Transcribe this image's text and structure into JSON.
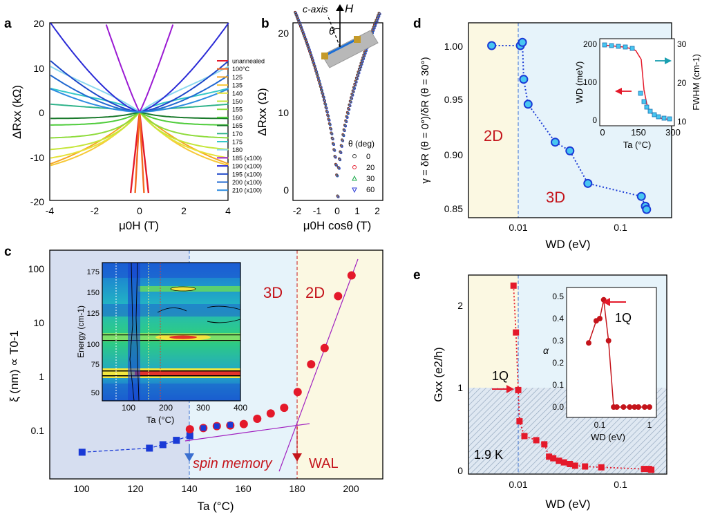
{
  "panels": {
    "a": {
      "letter": "a",
      "xlabel": "μ0H (T)",
      "ylabel": "ΔRxx (kΩ)",
      "xticks": [
        "-4",
        "-2",
        "0",
        "2",
        "4"
      ],
      "yticks": [
        "20",
        "10",
        "0",
        "-10",
        "-20"
      ],
      "legend": [
        {
          "label": "unannealed",
          "color": "#e4192a"
        },
        {
          "label": "100°C",
          "color": "#f46a1f"
        },
        {
          "label": "125",
          "color": "#f5a623"
        },
        {
          "label": "135",
          "color": "#f7c836"
        },
        {
          "label": "140",
          "color": "#e6e33a"
        },
        {
          "label": "150",
          "color": "#c5e63a"
        },
        {
          "label": "155",
          "color": "#8fdc3c"
        },
        {
          "label": "160",
          "color": "#4fcc3b"
        },
        {
          "label": "165",
          "color": "#1a7a2c"
        },
        {
          "label": "170",
          "color": "#2fb38a"
        },
        {
          "label": "175",
          "color": "#33c8c8"
        },
        {
          "label": "180",
          "color": "#8ad8ee"
        },
        {
          "label": "185 (x100)",
          "color": "#9b1ad3"
        },
        {
          "label": "190 (x100)",
          "color": "#2a2ad6"
        },
        {
          "label": "195 (x100)",
          "color": "#1d47c9"
        },
        {
          "label": "200 (x100)",
          "color": "#2168d0"
        },
        {
          "label": "210 (x100)",
          "color": "#2d8be0"
        }
      ]
    },
    "b": {
      "letter": "b",
      "xlabel": "μ0H cosθ (T)",
      "ylabel": "ΔRxx (Ω)",
      "xticks": [
        "-2",
        "-1",
        "0",
        "1",
        "2"
      ],
      "yticks": [
        "20",
        "10",
        "0"
      ],
      "caxis": "c-axis",
      "H": "H",
      "theta": "θ",
      "legend_title": "θ (deg)",
      "legend": [
        {
          "label": "0",
          "color": "#333333"
        },
        {
          "label": "20",
          "color": "#e4192a"
        },
        {
          "label": "30",
          "color": "#1aa84a"
        },
        {
          "label": "60",
          "color": "#2a3ad6"
        }
      ]
    },
    "c": {
      "letter": "c",
      "xlabel": "Ta (°C)",
      "ylabel": "ξ (nm) ∝ T0-1",
      "xticks": [
        "100",
        "120",
        "140",
        "160",
        "180",
        "200"
      ],
      "yticks": [
        "100",
        "10",
        "1",
        "0.1"
      ],
      "label_3d": "3D",
      "label_2d": "2D",
      "spin_memory": "spin memory",
      "wal": "WAL",
      "inset": {
        "ylabel": "Energy (cm-1)",
        "xlabel": "Ta (°C)",
        "yticks": [
          "175",
          "150",
          "125",
          "100",
          "75",
          "50"
        ],
        "xticks": [
          "100",
          "200",
          "300",
          "400"
        ]
      },
      "blue_series": [
        [
          100,
          0.042
        ],
        [
          125,
          0.05
        ],
        [
          130,
          0.058
        ],
        [
          135,
          0.07
        ],
        [
          140,
          0.085
        ]
      ],
      "red_series": [
        [
          140,
          0.112
        ],
        [
          145,
          0.118
        ],
        [
          150,
          0.128
        ],
        [
          155,
          0.132
        ],
        [
          160,
          0.14
        ],
        [
          165,
          0.175
        ],
        [
          170,
          0.22
        ],
        [
          175,
          0.28
        ],
        [
          180,
          0.55
        ],
        [
          185,
          1.8
        ],
        [
          190,
          3.6
        ],
        [
          195,
          33
        ],
        [
          200,
          80
        ]
      ]
    },
    "d": {
      "letter": "d",
      "xlabel": "WD (eV)",
      "ylabel": "γ = δR (θ = 0°)/δR (θ = 30°)",
      "xticks": [
        "0.01",
        "0.1"
      ],
      "yticks": [
        "1.00",
        "0.95",
        "0.90",
        "0.85"
      ],
      "label_2d": "2D",
      "label_3d": "3D",
      "series": [
        [
          0.0055,
          1.0
        ],
        [
          0.0105,
          1.0
        ],
        [
          0.011,
          1.003
        ],
        [
          0.0113,
          0.969
        ],
        [
          0.0125,
          0.946
        ],
        [
          0.023,
          0.911
        ],
        [
          0.032,
          0.903
        ],
        [
          0.048,
          0.873
        ],
        [
          0.16,
          0.861
        ],
        [
          0.175,
          0.852
        ],
        [
          0.18,
          0.849
        ]
      ],
      "inset": {
        "ylabel_left": "WD (meV)",
        "ylabel_right": "FWHM (cm-1)",
        "xlabel": "Ta (°C)",
        "xticks": [
          "0",
          "150",
          "300"
        ],
        "yticks_left": [
          "200",
          "100",
          "0"
        ],
        "yticks_right": [
          "30",
          "20",
          "10"
        ]
      }
    },
    "e": {
      "letter": "e",
      "xlabel": "WD (eV)",
      "ylabel": "Gxx (e2/h)",
      "xticks": [
        "0.01",
        "0.1"
      ],
      "yticks": [
        "2",
        "1",
        "0"
      ],
      "label_1q": "1Q",
      "label_temp": "1.9 K",
      "series": [
        [
          0.009,
          2.25
        ],
        [
          0.0095,
          1.68
        ],
        [
          0.01,
          0.98
        ],
        [
          0.0103,
          0.6
        ],
        [
          0.0115,
          0.42
        ],
        [
          0.015,
          0.37
        ],
        [
          0.018,
          0.32
        ],
        [
          0.02,
          0.17
        ],
        [
          0.022,
          0.15
        ],
        [
          0.025,
          0.12
        ],
        [
          0.028,
          0.1
        ],
        [
          0.032,
          0.08
        ],
        [
          0.036,
          0.06
        ],
        [
          0.045,
          0.05
        ],
        [
          0.065,
          0.04
        ],
        [
          0.17,
          0.02
        ],
        [
          0.19,
          0.02
        ],
        [
          0.2,
          0.01
        ]
      ],
      "inset": {
        "ylabel": "α",
        "xlabel": "WD (eV)",
        "label_1q": "1Q",
        "yticks": [
          "0.5",
          "0.4",
          "0.3",
          "0.2",
          "0.1",
          "0.0"
        ],
        "xticks": [
          "0.1",
          "1"
        ],
        "series": [
          [
            0.06,
            0.29
          ],
          [
            0.085,
            0.39
          ],
          [
            0.1,
            0.4
          ],
          [
            0.12,
            0.485
          ],
          [
            0.15,
            0.3
          ],
          [
            0.19,
            0.0
          ],
          [
            0.22,
            0.0
          ],
          [
            0.3,
            0.0
          ],
          [
            0.4,
            0.0
          ],
          [
            0.5,
            0.0
          ],
          [
            0.6,
            0.0
          ],
          [
            0.8,
            0.0
          ],
          [
            1.0,
            0.0
          ]
        ]
      }
    }
  }
}
